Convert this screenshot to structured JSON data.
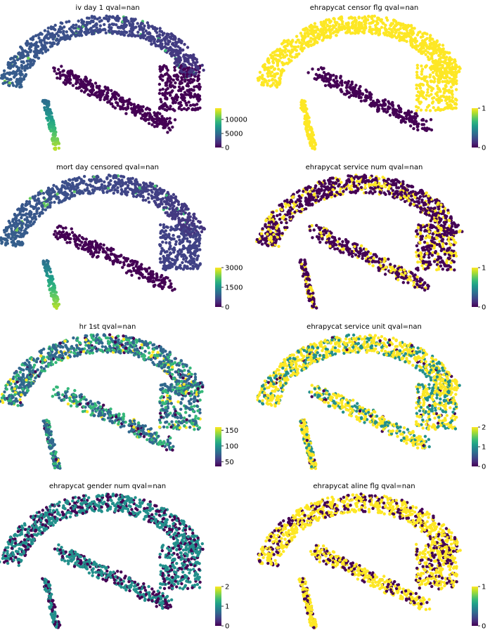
{
  "chart_data": [
    {
      "type": "scatter",
      "title": "iv day 1 qval=nan",
      "cmap": "viridis",
      "colorbar": {
        "ticks": [
          "0",
          "5000",
          "10000"
        ],
        "tick_values": [
          0,
          5000,
          10000
        ],
        "vmin": 0,
        "vmax": 14000
      },
      "pattern": "branch",
      "palette_weights": [
        0.72,
        0.2,
        0.06,
        0.02
      ]
    },
    {
      "type": "scatter",
      "title": "ehrapycat censor flg qval=nan",
      "cmap": "viridis",
      "colorbar": {
        "ticks": [
          "0",
          "1"
        ],
        "tick_values": [
          0,
          1
        ],
        "vmin": 0,
        "vmax": 1
      },
      "pattern": "binary-branch",
      "palette_weights": [
        0.75,
        0.25
      ]
    },
    {
      "type": "scatter",
      "title": "mort day censored qval=nan",
      "cmap": "viridis",
      "colorbar": {
        "ticks": [
          "0",
          "1500",
          "3000"
        ],
        "tick_values": [
          0,
          1500,
          3000
        ],
        "vmin": 0,
        "vmax": 3000
      },
      "pattern": "branch",
      "palette_weights": [
        0.68,
        0.22,
        0.07,
        0.03
      ]
    },
    {
      "type": "scatter",
      "title": "ehrapycat service num qval=nan",
      "cmap": "viridis",
      "colorbar": {
        "ticks": [
          "0",
          "1"
        ],
        "tick_values": [
          0,
          1
        ],
        "vmin": 0,
        "vmax": 1
      },
      "pattern": "random",
      "palette_weights": [
        0.7,
        0.3
      ]
    },
    {
      "type": "scatter",
      "title": "hr 1st qval=nan",
      "cmap": "viridis",
      "colorbar": {
        "ticks": [
          "50",
          "100",
          "150"
        ],
        "tick_values": [
          50,
          100,
          150
        ],
        "vmin": 35,
        "vmax": 160
      },
      "pattern": "random",
      "palette_weights": [
        0.08,
        0.55,
        0.3,
        0.07
      ]
    },
    {
      "type": "scatter",
      "title": "ehrapycat service unit qval=nan",
      "cmap": "viridis",
      "colorbar": {
        "ticks": [
          "0",
          "1",
          "2"
        ],
        "tick_values": [
          0,
          1,
          2
        ],
        "vmin": 0,
        "vmax": 2
      },
      "pattern": "random",
      "palette_weights": [
        0.03,
        0.35,
        0.62
      ]
    },
    {
      "type": "scatter",
      "title": "ehrapycat gender num qval=nan",
      "cmap": "viridis",
      "colorbar": {
        "ticks": [
          "0",
          "1",
          "2"
        ],
        "tick_values": [
          0,
          1,
          2
        ],
        "vmin": 0,
        "vmax": 2
      },
      "pattern": "random",
      "palette_weights": [
        0.35,
        0.65,
        0.0
      ]
    },
    {
      "type": "scatter",
      "title": "ehrapycat aline flg qval=nan",
      "cmap": "viridis",
      "colorbar": {
        "ticks": [
          "0",
          "1"
        ],
        "tick_values": [
          0,
          1
        ],
        "vmin": 0,
        "vmax": 1
      },
      "pattern": "random",
      "palette_weights": [
        0.3,
        0.7
      ]
    }
  ],
  "colors": {
    "viridis_low": "#440154",
    "viridis_mid_low": "#31688e",
    "viridis_mid": "#21918c",
    "viridis_mid_high": "#35b779",
    "viridis_high": "#fde725"
  }
}
